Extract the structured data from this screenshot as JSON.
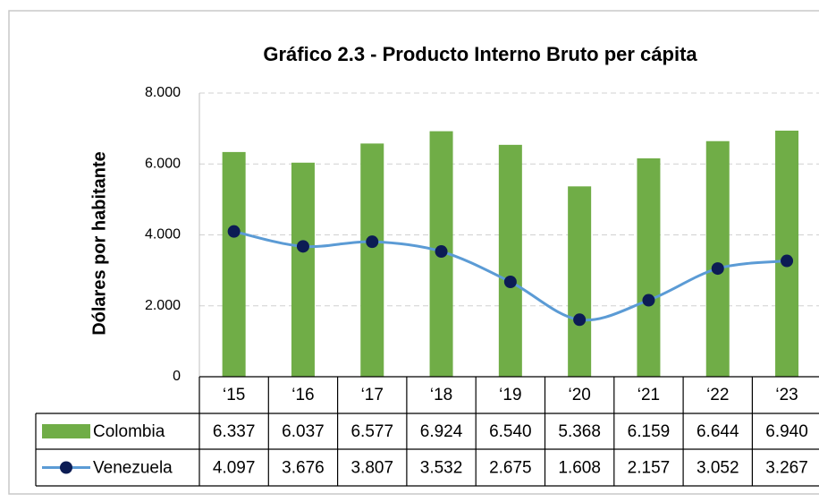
{
  "chart_data": {
    "type": "bar_line",
    "title": "Gráfico 2.3 - Producto Interno Bruto per cápita",
    "y_label": "Dólares por habitante",
    "categories": [
      "‘15",
      "‘16",
      "‘17",
      "‘18",
      "‘19",
      "‘20",
      "‘21",
      "‘22",
      "‘23"
    ],
    "series": [
      {
        "name": "Colombia",
        "type": "bar",
        "color": "#70ad47",
        "values": [
          6337,
          6037,
          6577,
          6924,
          6540,
          5368,
          6159,
          6644,
          6940
        ],
        "value_labels": [
          "6.337",
          "6.037",
          "6.577",
          "6.924",
          "6.540",
          "5.368",
          "6.159",
          "6.644",
          "6.940"
        ]
      },
      {
        "name": "Venezuela",
        "type": "line",
        "color": "#5b9bd5",
        "marker_color": "#0c1c54",
        "values": [
          4097,
          3676,
          3807,
          3532,
          2675,
          1608,
          2157,
          3052,
          3267
        ],
        "value_labels": [
          "4.097",
          "3.676",
          "3.807",
          "3.532",
          "2.675",
          "1.608",
          "2.157",
          "3.052",
          "3.267"
        ]
      }
    ],
    "ylim": [
      0,
      8000
    ],
    "yticks": [
      0,
      {
        "value": 2000,
        "label": "2.000"
      },
      {
        "value": 4000,
        "label": "4.000"
      },
      {
        "value": 6000,
        "label": "6.000"
      },
      {
        "value": 8000,
        "label": "8.000"
      }
    ],
    "grid": true,
    "data_table": true
  }
}
